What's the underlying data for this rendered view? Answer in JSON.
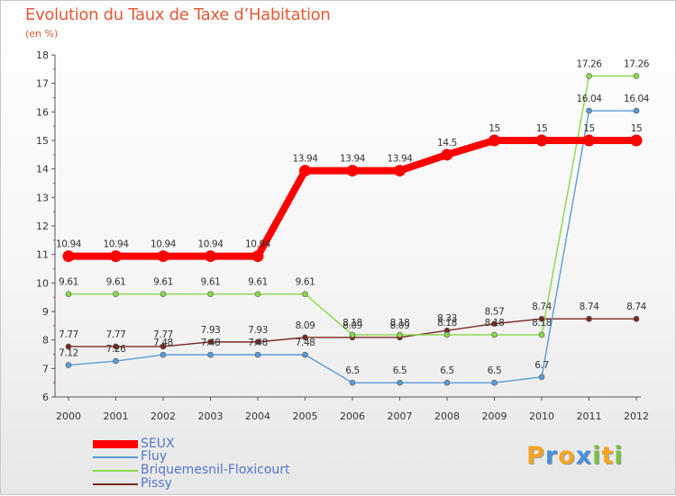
{
  "header": {
    "title": "Evolution du Taux de Taxe d’Habitation",
    "unit": "(en %)"
  },
  "chart_data": {
    "type": "line",
    "title": "Evolution du Taux de Taxe d’Habitation",
    "ylabel": "(en %)",
    "xlabel": "",
    "ylim": [
      6,
      18
    ],
    "yticks": [
      6,
      7,
      8,
      9,
      10,
      11,
      12,
      13,
      14,
      15,
      16,
      17,
      18
    ],
    "categories": [
      "2000",
      "2001",
      "2002",
      "2003",
      "2004",
      "2005",
      "2006",
      "2007",
      "2008",
      "2009",
      "2010",
      "2011",
      "2012"
    ],
    "grid": false,
    "legend": "bottom-left",
    "series": [
      {
        "name": "SEUX",
        "color": "#ff0000",
        "values": [
          10.94,
          10.94,
          10.94,
          10.94,
          10.94,
          13.94,
          13.94,
          13.94,
          14.5,
          15,
          15,
          15,
          15
        ]
      },
      {
        "name": "Fluy",
        "color": "#5b9bd5",
        "values": [
          7.12,
          7.26,
          7.48,
          7.48,
          7.48,
          7.48,
          6.5,
          6.5,
          6.5,
          6.5,
          6.7,
          16.04,
          16.04
        ]
      },
      {
        "name": "Briquemesnil-Floxicourt",
        "color": "#88d848",
        "values": [
          9.61,
          9.61,
          9.61,
          9.61,
          9.61,
          9.61,
          8.18,
          8.18,
          8.18,
          8.18,
          8.18,
          17.26,
          17.26
        ]
      },
      {
        "name": "Pissy",
        "color": "#7a2a22",
        "values": [
          7.77,
          7.77,
          7.77,
          7.93,
          7.93,
          8.09,
          8.09,
          8.09,
          8.33,
          8.57,
          8.74,
          8.74,
          8.74
        ]
      }
    ]
  },
  "logo": {
    "letters": [
      "P",
      "r",
      "o",
      "x",
      "i",
      "t",
      "i"
    ],
    "colors": [
      "#f5a623",
      "#4a90d9",
      "#f5a623",
      "#4a90d9",
      "#7bc043",
      "#f5a623",
      "#7bc043"
    ]
  }
}
